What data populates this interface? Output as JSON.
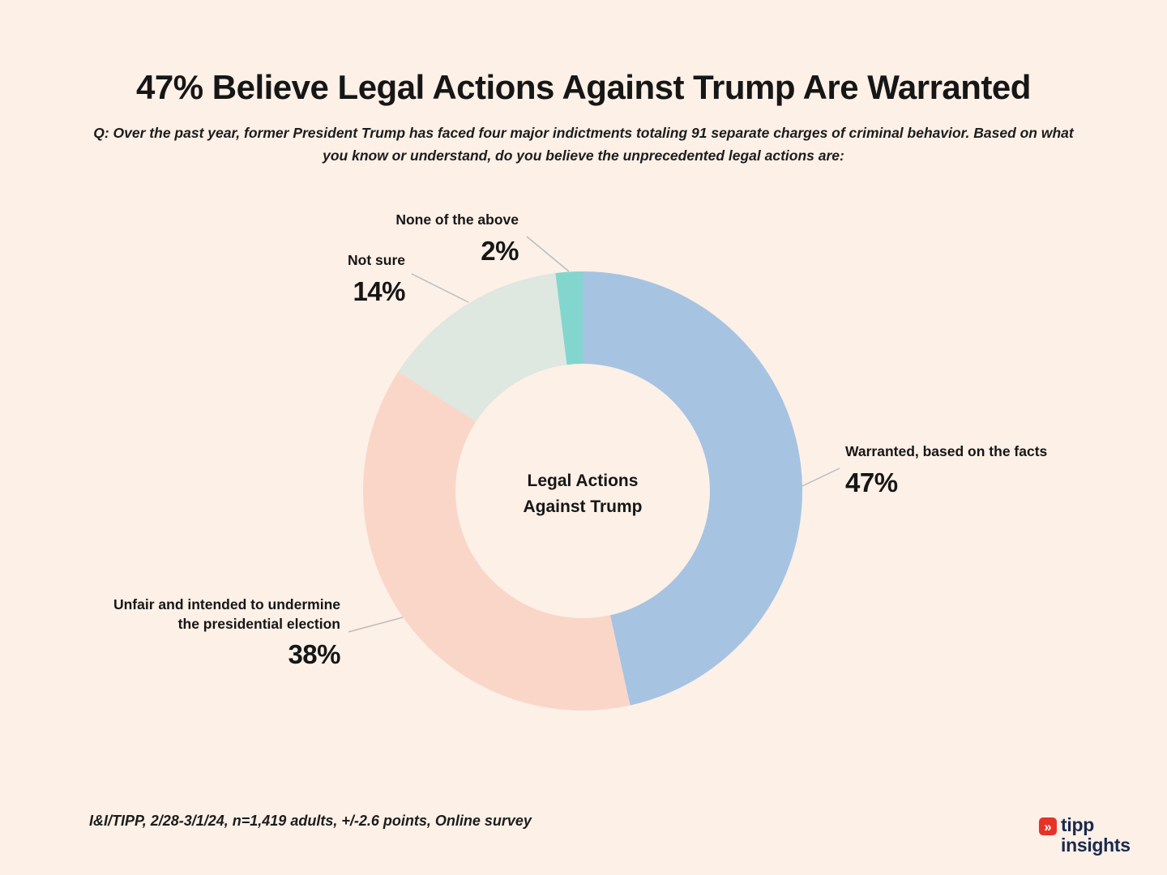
{
  "page": {
    "title": "47% Believe Legal Actions Against Trump Are Warranted",
    "subtitle": "Q: Over the past year, former President Trump has faced four major indictments totaling 91 separate charges of criminal behavior. Based on what you know or understand, do you believe the unprecedented legal actions are:",
    "footnote": "I&I/TIPP, 2/28-3/1/24, n=1,419 adults, +/-2.6 points,  Online survey",
    "background_color": "#fcf0e7"
  },
  "logo": {
    "word1": "tipp",
    "word2": "insights",
    "icon_glyph": "»",
    "icon_color": "#e63329",
    "text_color": "#1b2a4d"
  },
  "chart_data": {
    "type": "pie",
    "variant": "donut",
    "title": "Legal Actions Against Trump",
    "center_label": "Legal Actions\nAgainst Trump",
    "start_angle_deg": 0,
    "direction": "clockwise",
    "legend_position": "callout-labels",
    "slices": [
      {
        "label": "Warranted, based on the facts",
        "value": 47,
        "display": "47%",
        "color": "#a6c3e2"
      },
      {
        "label": "Unfair and intended to undermine the presidential election",
        "value": 38,
        "display": "38%",
        "color": "#fad6c9"
      },
      {
        "label": "Not sure",
        "value": 14,
        "display": "14%",
        "color": "#dee7e0"
      },
      {
        "label": "None of the above",
        "value": 2,
        "display": "2%",
        "color": "#82d6ce"
      }
    ]
  }
}
